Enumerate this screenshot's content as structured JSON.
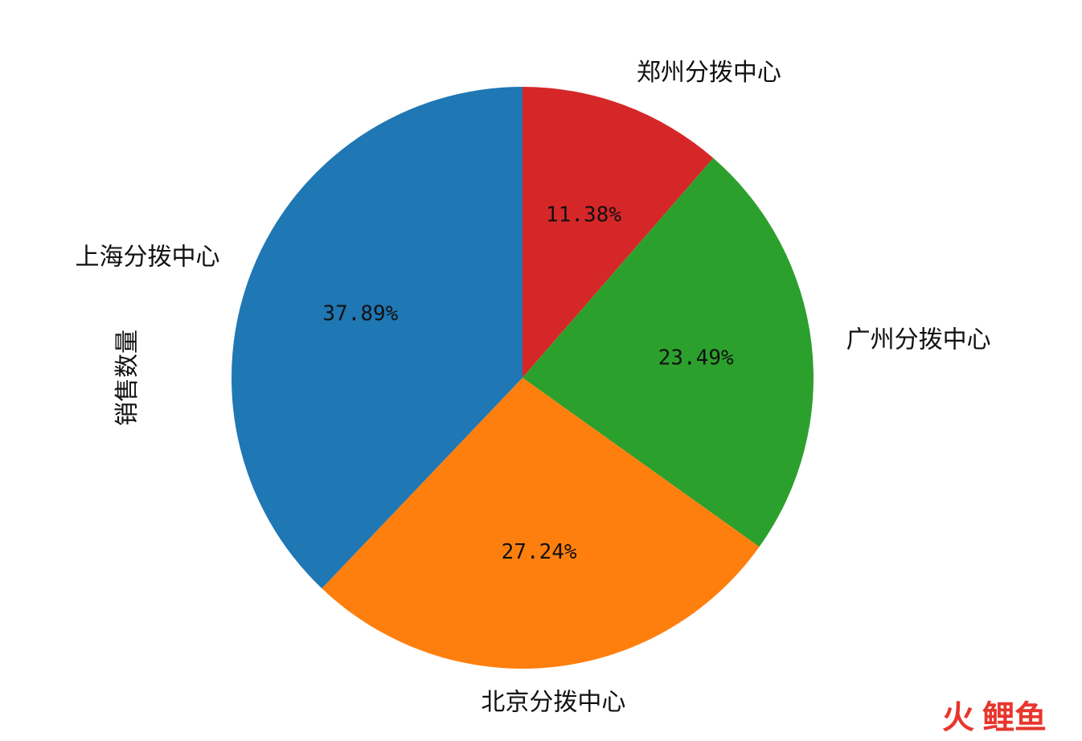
{
  "chart_data": {
    "type": "pie",
    "ylabel": "销售数量",
    "start_angle_deg": 90,
    "direction": "clockwise",
    "slices": [
      {
        "label": "郑州分拨中心",
        "percent": 11.38,
        "pct_text": "11.38%",
        "color": "#d62728"
      },
      {
        "label": "广州分拨中心",
        "percent": 23.49,
        "pct_text": "23.49%",
        "color": "#2ca02c"
      },
      {
        "label": "北京分拨中心",
        "percent": 27.24,
        "pct_text": "27.24%",
        "color": "#ff7f0e"
      },
      {
        "label": "上海分拨中心",
        "percent": 37.89,
        "pct_text": "37.89%",
        "color": "#1f77b4"
      }
    ]
  },
  "watermark": {
    "text_a": "火",
    "text_b": "鲤鱼",
    "color_a": "#e8362d",
    "color_b": "#e8362d"
  }
}
